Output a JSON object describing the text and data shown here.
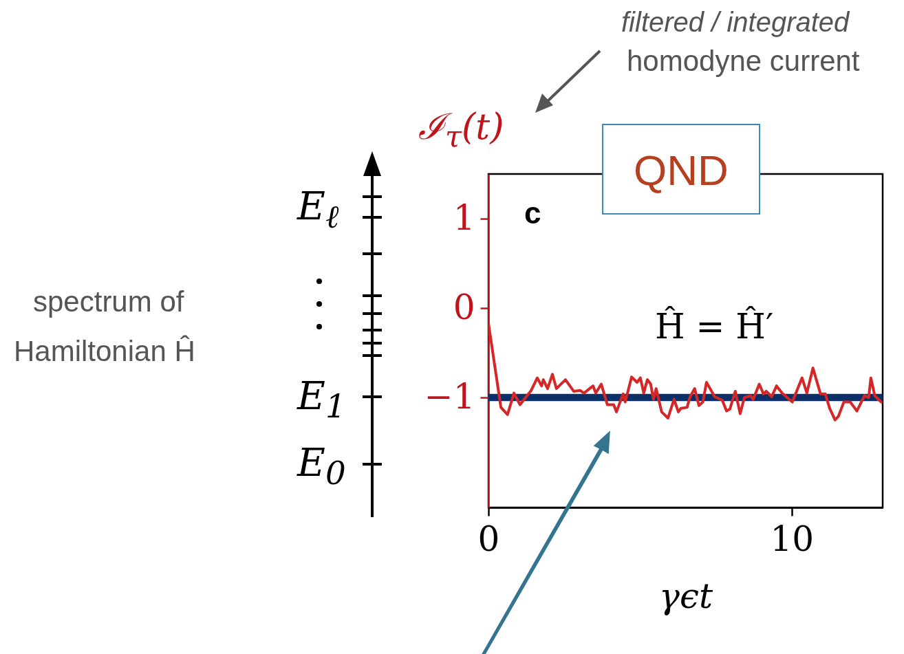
{
  "chart_data": {
    "type": "line",
    "xlabel": "γϵt",
    "ylabel": "ℐ$_{τ}$(t)",
    "xlim": [
      0,
      13
    ],
    "xticks": [
      0,
      10
    ],
    "ylim": [
      -2.23,
      1.5
    ],
    "yticks": [
      {
        "value": -1,
        "label": "−1"
      },
      0,
      1
    ],
    "grid": false,
    "bands": [
      {
        "axis": "y",
        "from": -1.04,
        "to": -0.96,
        "color": "#0b3068"
      }
    ],
    "series": [
      {
        "color": "#d62728",
        "x": [
          0,
          0.41,
          0.63,
          0.84,
          1.04,
          1.41,
          1.61,
          1.75,
          1.81,
          1.95,
          2.11,
          2.24,
          2.54,
          2.81,
          3.02,
          3.15,
          3.45,
          3.54,
          3.72,
          3.92,
          4.13,
          4.22,
          4.44,
          4.51,
          4.72,
          4.9,
          5.01,
          5.12,
          5.24,
          5.35,
          5.44,
          5.53,
          5.71,
          5.92,
          6.12,
          6.26,
          6.35,
          6.55,
          6.64,
          6.8,
          6.94,
          7.07,
          7.19,
          7.46,
          7.71,
          7.85,
          7.96,
          8.14,
          8.3,
          8.44,
          8.64,
          8.73,
          8.93,
          9.07,
          9.16,
          9.34,
          9.5,
          9.68,
          10.02,
          10.34,
          10.5,
          10.7,
          10.95,
          11.11,
          11.25,
          11.43,
          11.54,
          11.72,
          11.93,
          12.15,
          12.4,
          12.54,
          12.61,
          12.74,
          12.95
        ],
        "values": [
          -0.17,
          -1.11,
          -1.19,
          -0.95,
          -1.08,
          -0.92,
          -0.78,
          -0.87,
          -0.8,
          -0.9,
          -0.74,
          -0.9,
          -0.8,
          -0.93,
          -0.92,
          -0.95,
          -0.87,
          -0.95,
          -0.85,
          -1.08,
          -1.08,
          -1.16,
          -0.96,
          -1.05,
          -0.77,
          -0.83,
          -0.78,
          -0.95,
          -0.8,
          -0.85,
          -1.02,
          -0.9,
          -1.16,
          -1.23,
          -1.02,
          -1.16,
          -1.12,
          -1.11,
          -1.0,
          -0.9,
          -1.09,
          -1.05,
          -0.83,
          -0.99,
          -1.03,
          -1.15,
          -1.13,
          -0.93,
          -1.18,
          -1.0,
          -0.98,
          -1.02,
          -0.85,
          -0.96,
          -0.93,
          -0.99,
          -0.87,
          -0.95,
          -1.05,
          -0.78,
          -0.95,
          -0.67,
          -0.96,
          -0.96,
          -1.12,
          -1.25,
          -1.21,
          -1.05,
          -1.05,
          -1.15,
          -0.98,
          -1.0,
          -0.78,
          -0.98,
          -1.05
        ]
      }
    ],
    "annotations": [
      "filtered / integrated",
      "homodyne current",
      "QND",
      "c",
      "Ĥ = Ĥ′",
      "spectrum of",
      "Hamiltonian Ĥ",
      "E$_{ℓ}$",
      "E$_{1}$",
      "E$_{0}$"
    ]
  }
}
